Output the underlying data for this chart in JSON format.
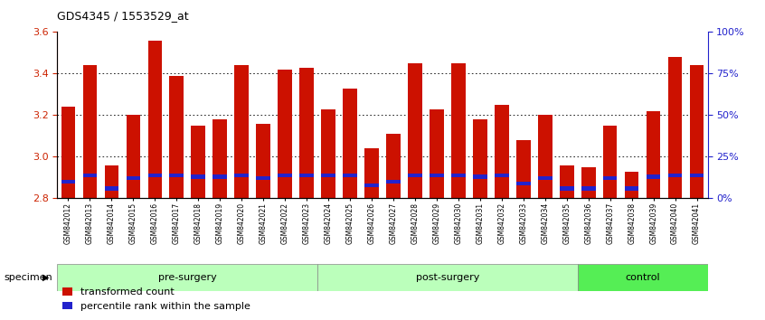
{
  "title": "GDS4345 / 1553529_at",
  "samples": [
    "GSM842012",
    "GSM842013",
    "GSM842014",
    "GSM842015",
    "GSM842016",
    "GSM842017",
    "GSM842018",
    "GSM842019",
    "GSM842020",
    "GSM842021",
    "GSM842022",
    "GSM842023",
    "GSM842024",
    "GSM842025",
    "GSM842026",
    "GSM842027",
    "GSM842028",
    "GSM842029",
    "GSM842030",
    "GSM842031",
    "GSM842032",
    "GSM842033",
    "GSM842034",
    "GSM842035",
    "GSM842036",
    "GSM842037",
    "GSM842038",
    "GSM842039",
    "GSM842040",
    "GSM842041"
  ],
  "transformed_count": [
    3.24,
    3.44,
    2.96,
    3.2,
    3.56,
    3.39,
    3.15,
    3.18,
    3.44,
    3.16,
    3.42,
    3.43,
    3.23,
    3.33,
    3.04,
    3.11,
    3.45,
    3.23,
    3.45,
    3.18,
    3.25,
    3.08,
    3.2,
    2.96,
    2.95,
    3.15,
    2.93,
    3.22,
    3.48,
    3.44
  ],
  "percentile_rank": [
    10,
    14,
    6,
    12,
    14,
    14,
    13,
    13,
    14,
    12,
    14,
    14,
    14,
    14,
    8,
    10,
    14,
    14,
    14,
    13,
    14,
    9,
    12,
    6,
    6,
    12,
    6,
    13,
    14,
    14
  ],
  "groups": [
    {
      "label": "pre-surgery",
      "start": 0,
      "end": 12
    },
    {
      "label": "post-surgery",
      "start": 12,
      "end": 24
    },
    {
      "label": "control",
      "start": 24,
      "end": 30
    }
  ],
  "group_colors_light": [
    "#BBFFBB",
    "#BBFFBB",
    "#55EE55"
  ],
  "y_min": 2.8,
  "y_max": 3.6,
  "y_ticks_left": [
    2.8,
    3.0,
    3.2,
    3.4,
    3.6
  ],
  "y_ticks_right": [
    0,
    25,
    50,
    75,
    100
  ],
  "y_ticks_right_labels": [
    "0%",
    "25%",
    "50%",
    "75%",
    "100%"
  ],
  "bar_color": "#CC1100",
  "blue_color": "#2222CC",
  "tick_label_color_left": "#CC2200",
  "tick_label_color_right": "#2222CC",
  "legend_items": [
    "transformed count",
    "percentile rank within the sample"
  ],
  "specimen_label": "specimen"
}
